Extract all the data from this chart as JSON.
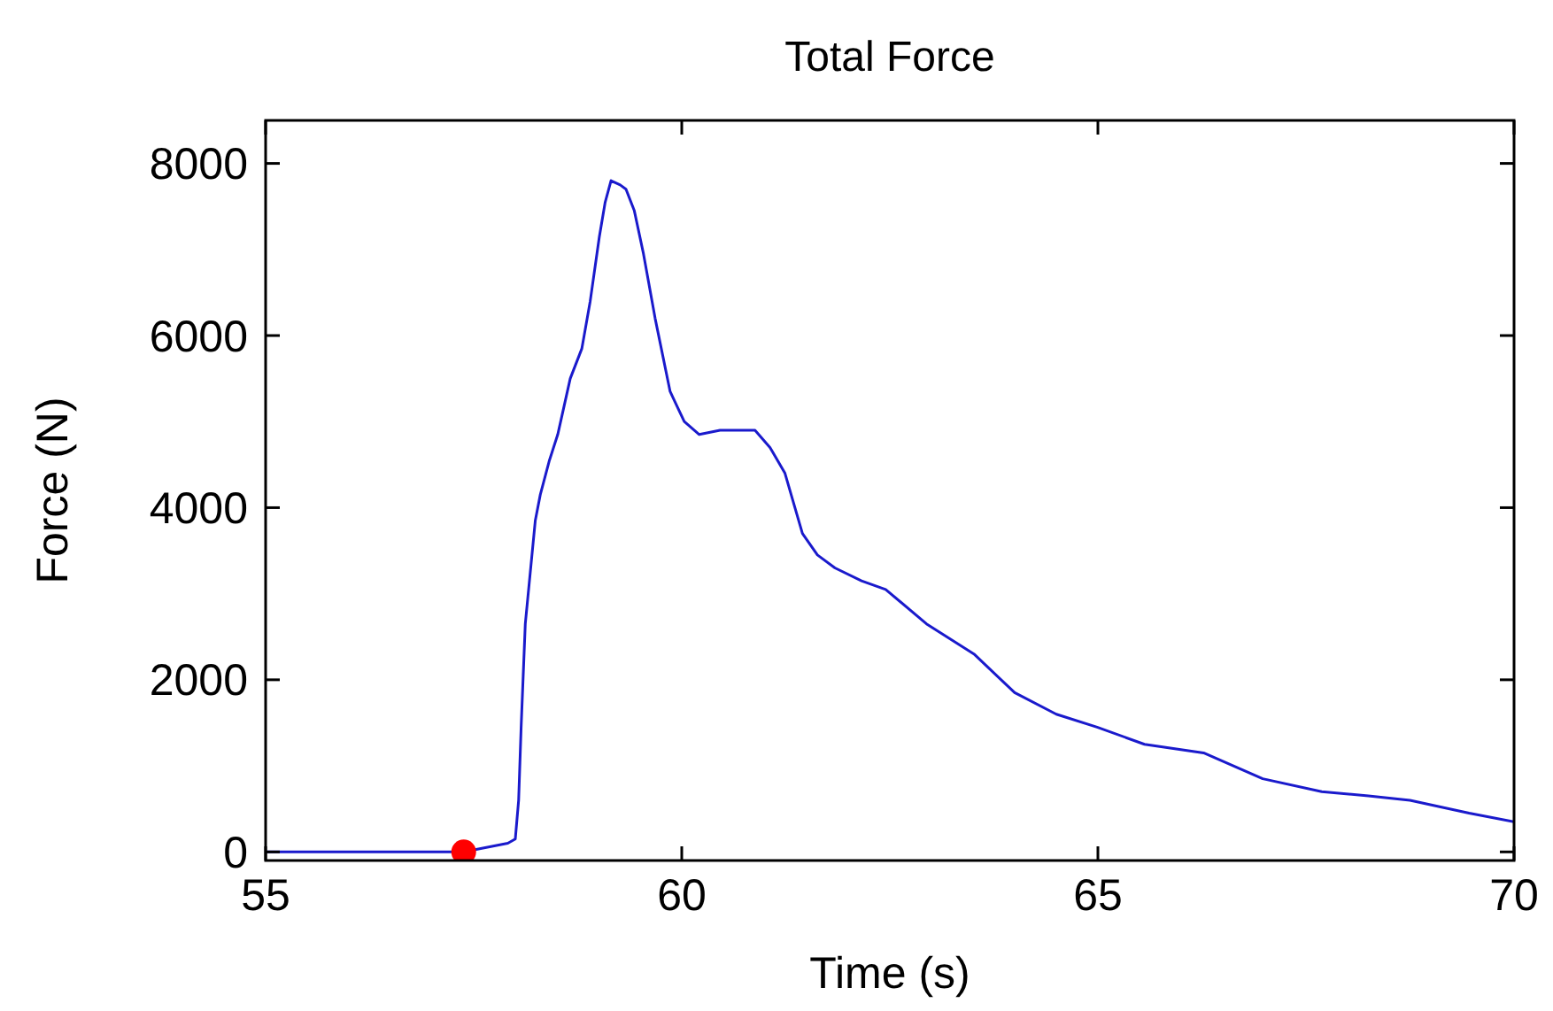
{
  "chart_data": {
    "type": "line",
    "title": "Total Force",
    "xlabel": "Time (s)",
    "ylabel": "Force (N)",
    "xlim": [
      55,
      70
    ],
    "ylim": [
      -100,
      8500
    ],
    "xticks": [
      55,
      60,
      65,
      70
    ],
    "yticks": [
      0,
      2000,
      4000,
      6000,
      8000
    ],
    "grid": false,
    "series": [
      {
        "color": "#1a1acc",
        "marker": "none",
        "x": [
          55,
          57.38,
          57.91,
          58.0,
          58.04,
          58.07,
          58.12,
          58.18,
          58.24,
          58.3,
          58.41,
          58.51,
          58.66,
          58.8,
          58.9,
          59.01,
          59.08,
          59.15,
          59.26,
          59.33,
          59.43,
          59.54,
          59.68,
          59.86,
          60.03,
          60.21,
          60.46,
          60.67,
          60.88,
          61.06,
          61.24,
          61.45,
          61.63,
          61.84,
          62.16,
          62.45,
          62.94,
          63.51,
          64.0,
          64.5,
          64.99,
          65.56,
          66.27,
          66.98,
          67.69,
          68.25,
          68.75,
          69.46,
          70
        ],
        "values": [
          0,
          0,
          100,
          150,
          600,
          1450,
          2650,
          3250,
          3850,
          4150,
          4550,
          4850,
          5500,
          5850,
          6400,
          7150,
          7550,
          7800,
          7750,
          7700,
          7450,
          6950,
          6200,
          5350,
          5000,
          4850,
          4900,
          4900,
          4900,
          4700,
          4400,
          3700,
          3450,
          3300,
          3150,
          3050,
          2650,
          2300,
          1850,
          1600,
          1450,
          1250,
          1150,
          850,
          700,
          650,
          600,
          450,
          350
        ]
      },
      {
        "type": "scatter",
        "color": "#ff0000",
        "marker": "circle",
        "x": [
          57.38
        ],
        "values": [
          0
        ]
      }
    ]
  }
}
